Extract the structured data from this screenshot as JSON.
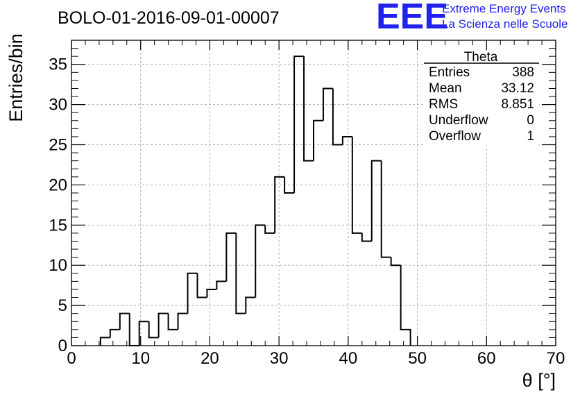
{
  "chart_data": {
    "type": "histogram",
    "title": "BOLO-01-2016-09-01-00007",
    "xlabel": "θ [°]",
    "ylabel": "Entries/bin",
    "xlim": [
      0,
      70
    ],
    "ylim": [
      0,
      38
    ],
    "bin_width": 1.4,
    "x_ticks": [
      "0",
      "10",
      "20",
      "30",
      "40",
      "50",
      "60",
      "70"
    ],
    "y_ticks": [
      "0",
      "5",
      "10",
      "15",
      "20",
      "25",
      "30",
      "35"
    ],
    "grid": true,
    "bin_low_edges": [
      4.2,
      5.6,
      7.0,
      8.4,
      9.8,
      11.2,
      12.6,
      14.0,
      15.4,
      16.8,
      18.2,
      19.6,
      21.0,
      22.4,
      23.8,
      25.2,
      26.6,
      28.0,
      29.4,
      30.8,
      32.2,
      33.6,
      35.0,
      36.4,
      37.8,
      39.2,
      40.6,
      42.0,
      43.4,
      44.8,
      46.2,
      47.6
    ],
    "values": [
      1,
      2,
      4,
      0,
      3,
      1,
      4,
      2,
      4,
      9,
      6,
      7,
      8,
      14,
      4,
      6,
      15,
      14,
      21,
      19,
      36,
      23,
      28,
      32,
      25,
      26,
      14,
      13,
      23,
      11,
      10,
      2
    ],
    "stats_box": {
      "title": "Theta",
      "rows": [
        {
          "label": "Entries",
          "value": "388"
        },
        {
          "label": "Mean",
          "value": "33.12"
        },
        {
          "label": "RMS",
          "value": "8.851"
        },
        {
          "label": "Underflow",
          "value": "0"
        },
        {
          "label": "Overflow",
          "value": "1"
        }
      ]
    }
  },
  "logo": {
    "mark": "EEE",
    "line1": "Extreme Energy Events",
    "line2": "La Scienza nelle Scuole",
    "color": "#2222ee"
  },
  "colors": {
    "line": "#000000",
    "grid": "#b0b0b0"
  }
}
